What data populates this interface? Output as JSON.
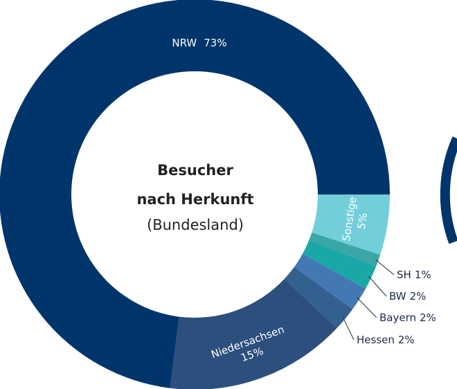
{
  "chart_data": {
    "type": "donut",
    "title": [
      "Besucher",
      "nach Herkunft"
    ],
    "subtitle": "(Bundesland)",
    "categories": [
      "Sonstige",
      "SH",
      "BW",
      "Bayern",
      "Hessen",
      "Niedersachsen",
      "NRW"
    ],
    "values": [
      5,
      1,
      2,
      2,
      2,
      15,
      73
    ],
    "value_labels": [
      "5%",
      "1%",
      "2%",
      "2%",
      "2%",
      "15%",
      "73%"
    ],
    "colors": [
      "#72cfda",
      "#3aa6a6",
      "#1aa8a6",
      "#4478b4",
      "#34608f",
      "#2d4f7d",
      "#00356b"
    ]
  }
}
